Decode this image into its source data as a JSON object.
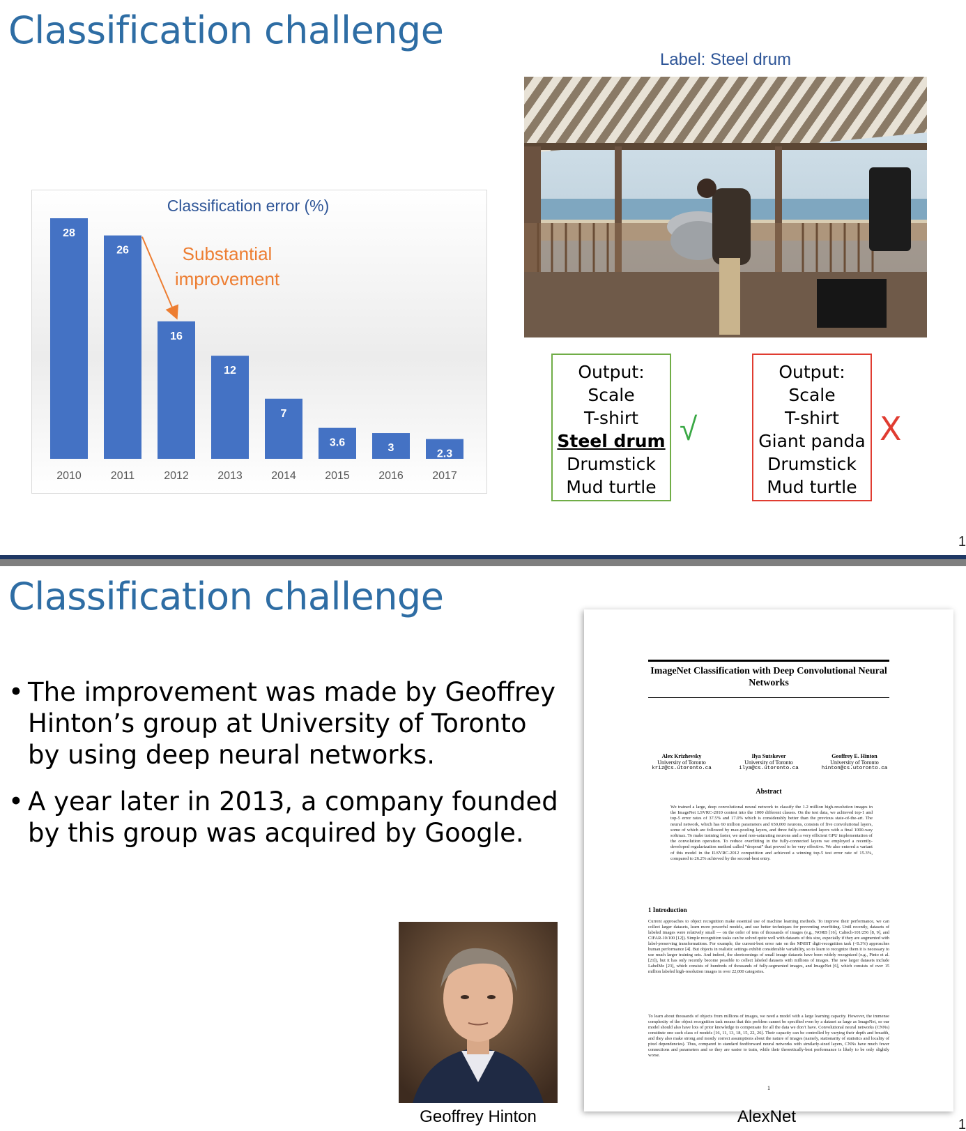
{
  "slide1": {
    "title": "Classification challenge",
    "page_number": "1",
    "photo_label": "Label: Steel drum",
    "output_good": {
      "header": "Output:",
      "items": [
        "Scale",
        "T-shirt",
        "Steel drum",
        "Drumstick",
        "Mud turtle"
      ],
      "highlight_index": 2,
      "mark": "√",
      "border_color": "#70ad47"
    },
    "output_bad": {
      "header": "Output:",
      "items": [
        "Scale",
        "T-shirt",
        "Giant panda",
        "Drumstick",
        "Mud turtle"
      ],
      "mark": "X",
      "border_color": "#e03c31"
    }
  },
  "chart_data": {
    "type": "bar",
    "title": "Classification error (%)",
    "categories": [
      "2010",
      "2011",
      "2012",
      "2013",
      "2014",
      "2015",
      "2016",
      "2017"
    ],
    "values": [
      28,
      26,
      16,
      12,
      7,
      3.6,
      3,
      2.3
    ],
    "value_labels": [
      "28",
      "26",
      "16",
      "12",
      "7",
      "3.6",
      "3",
      "2.3"
    ],
    "xlabel": "",
    "ylabel": "",
    "ylim": [
      0,
      28
    ],
    "grid": false,
    "bar_color": "#4472c4",
    "annotation": {
      "lines": [
        "Substantial",
        "improvement"
      ],
      "color": "#ed7d31",
      "arrow_from_category": "2011",
      "arrow_to_category": "2012"
    }
  },
  "slide2": {
    "title": "Classification challenge",
    "page_number": "1",
    "bullets": [
      "The improvement was made by Geoffrey Hinton’s group at University of Toronto by using deep neural networks.",
      "A year later in 2013, a company founded by this group was acquired by Google."
    ],
    "bullet_symbol": "•",
    "portrait_caption": "Geoffrey Hinton",
    "paper_caption": "AlexNet",
    "paper": {
      "title": "ImageNet Classification with Deep Convolutional Neural Networks",
      "authors": [
        {
          "name": "Alex Krizhevsky",
          "affiliation": "University of Toronto",
          "email": "kriz@cs.utoronto.ca"
        },
        {
          "name": "Ilya Sutskever",
          "affiliation": "University of Toronto",
          "email": "ilya@cs.utoronto.ca"
        },
        {
          "name": "Geoffrey E. Hinton",
          "affiliation": "University of Toronto",
          "email": "hinton@cs.utoronto.ca"
        }
      ],
      "abstract_heading": "Abstract",
      "abstract": "We trained a large, deep convolutional neural network to classify the 1.2 million high-resolution images in the ImageNet LSVRC-2010 contest into the 1000 different classes. On the test data, we achieved top-1 and top-5 error rates of 37.5% and 17.0% which is considerably better than the previous state-of-the-art. The neural network, which has 60 million parameters and 650,000 neurons, consists of five convolutional layers, some of which are followed by max-pooling layers, and three fully-connected layers with a final 1000-way softmax. To make training faster, we used non-saturating neurons and a very efficient GPU implementation of the convolution operation. To reduce overfitting in the fully-connected layers we employed a recently-developed regularization method called “dropout” that proved to be very effective. We also entered a variant of this model in the ILSVRC-2012 competition and achieved a winning top-5 test error rate of 15.3%, compared to 26.2% achieved by the second-best entry.",
      "intro_heading": "1   Introduction",
      "intro_p1": "Current approaches to object recognition make essential use of machine learning methods. To improve their performance, we can collect larger datasets, learn more powerful models, and use better techniques for preventing overfitting. Until recently, datasets of labeled images were relatively small — on the order of tens of thousands of images (e.g., NORB [16], Caltech-101/256 [8, 9], and CIFAR-10/100 [12]). Simple recognition tasks can be solved quite well with datasets of this size, especially if they are augmented with label-preserving transformations. For example, the current-best error rate on the MNIST digit-recognition task (<0.3%) approaches human performance [4]. But objects in realistic settings exhibit considerable variability, so to learn to recognize them it is necessary to use much larger training sets. And indeed, the shortcomings of small image datasets have been widely recognized (e.g., Pinto et al. [21]), but it has only recently become possible to collect labeled datasets with millions of images. The new larger datasets include LabelMe [23], which consists of hundreds of thousands of fully-segmented images, and ImageNet [6], which consists of over 15 million labeled high-resolution images in over 22,000 categories.",
      "intro_p2": "To learn about thousands of objects from millions of images, we need a model with a large learning capacity. However, the immense complexity of the object recognition task means that this problem cannot be specified even by a dataset as large as ImageNet, so our model should also have lots of prior knowledge to compensate for all the data we don’t have. Convolutional neural networks (CNNs) constitute one such class of models [16, 11, 13, 18, 15, 22, 26]. Their capacity can be controlled by varying their depth and breadth, and they also make strong and mostly correct assumptions about the nature of images (namely, stationarity of statistics and locality of pixel dependencies). Thus, compared to standard feedforward neural networks with similarly-sized layers, CNNs have much fewer connections and parameters and so they are easier to train, while their theoretically-best performance is likely to be only slightly worse.",
      "page": "1"
    }
  }
}
